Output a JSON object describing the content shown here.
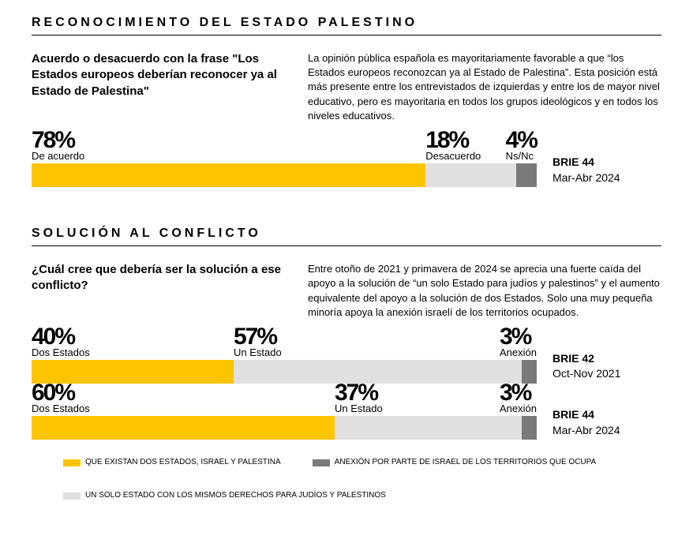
{
  "colors": {
    "yellow": "#fdc500",
    "lightgray": "#e0e0e0",
    "darkgray": "#7a7a7a",
    "text": "#000000",
    "bg": "#ffffff"
  },
  "section1": {
    "title": "RECONOCIMIENTO DEL ESTADO PALESTINO",
    "question": "Acuerdo o desacuerdo con la frase \"Los Estados europeos deberían reconocer ya al Estado de Palestina\"",
    "intro": "La opinión pública española es mayoritariamente favorable a que “los Estados europeos reconozcan ya al Estado de Palestina”. Esta posición está más presente entre los entrevistados de izquierdas y entre los de mayor nivel educativo, pero es mayoritaria en todos los grupos ideológicos y en todos los niveles educativos.",
    "chart": {
      "type": "stacked-bar",
      "survey": "BRIE 44",
      "period": "Mar-Abr 2024",
      "segments": [
        {
          "pct": 78,
          "pct_display": "78%",
          "label": "De acuerdo",
          "colorKey": "yellow"
        },
        {
          "pct": 18,
          "pct_display": "18%",
          "label": "Desacuerdo",
          "colorKey": "lightgray"
        },
        {
          "pct": 4,
          "pct_display": "4%",
          "label": "Ns/Nc",
          "colorKey": "darkgray"
        }
      ]
    }
  },
  "section2": {
    "title": "SOLUCIÓN AL CONFLICTO",
    "question": "¿Cuál cree que debería ser la solución a ese conflicto?",
    "intro": "Entre otoño de 2021 y primavera de 2024 se aprecia una fuerte caída del apoyo a la solución de “un solo Estado para judíos y palestinos” y el aumento equivalente del apoyo a la solución de dos Estados. Solo una muy pequeña minoría apoya la anexión israelí de los territorios ocupados.",
    "charts": [
      {
        "type": "stacked-bar",
        "survey": "BRIE 42",
        "period": "Oct-Nov 2021",
        "segments": [
          {
            "pct": 40,
            "pct_display": "40%",
            "label": "Dos Estados",
            "colorKey": "yellow"
          },
          {
            "pct": 57,
            "pct_display": "57%",
            "label": "Un Estado",
            "colorKey": "lightgray"
          },
          {
            "pct": 3,
            "pct_display": "3%",
            "label": "Anexión",
            "colorKey": "darkgray"
          }
        ]
      },
      {
        "type": "stacked-bar",
        "survey": "BRIE 44",
        "period": "Mar-Abr 2024",
        "segments": [
          {
            "pct": 60,
            "pct_display": "60%",
            "label": "Dos Estados",
            "colorKey": "yellow"
          },
          {
            "pct": 37,
            "pct_display": "37%",
            "label": "Un Estado",
            "colorKey": "lightgray"
          },
          {
            "pct": 3,
            "pct_display": "3%",
            "label": "Anexión",
            "colorKey": "darkgray"
          }
        ]
      }
    ],
    "legend": [
      {
        "colorKey": "yellow",
        "text": "QUE EXISTAN DOS ESTADOS, ISRAEL Y PALESTINA"
      },
      {
        "colorKey": "darkgray",
        "text": "ANEXIÓN POR PARTE DE ISRAEL DE LOS TERRITORIOS QUE OCUPA"
      },
      {
        "colorKey": "lightgray",
        "text": "UN SOLO ESTADO CON LOS MISMOS DERECHOS PARA JUDÍOS Y PALESTINOS"
      }
    ]
  }
}
